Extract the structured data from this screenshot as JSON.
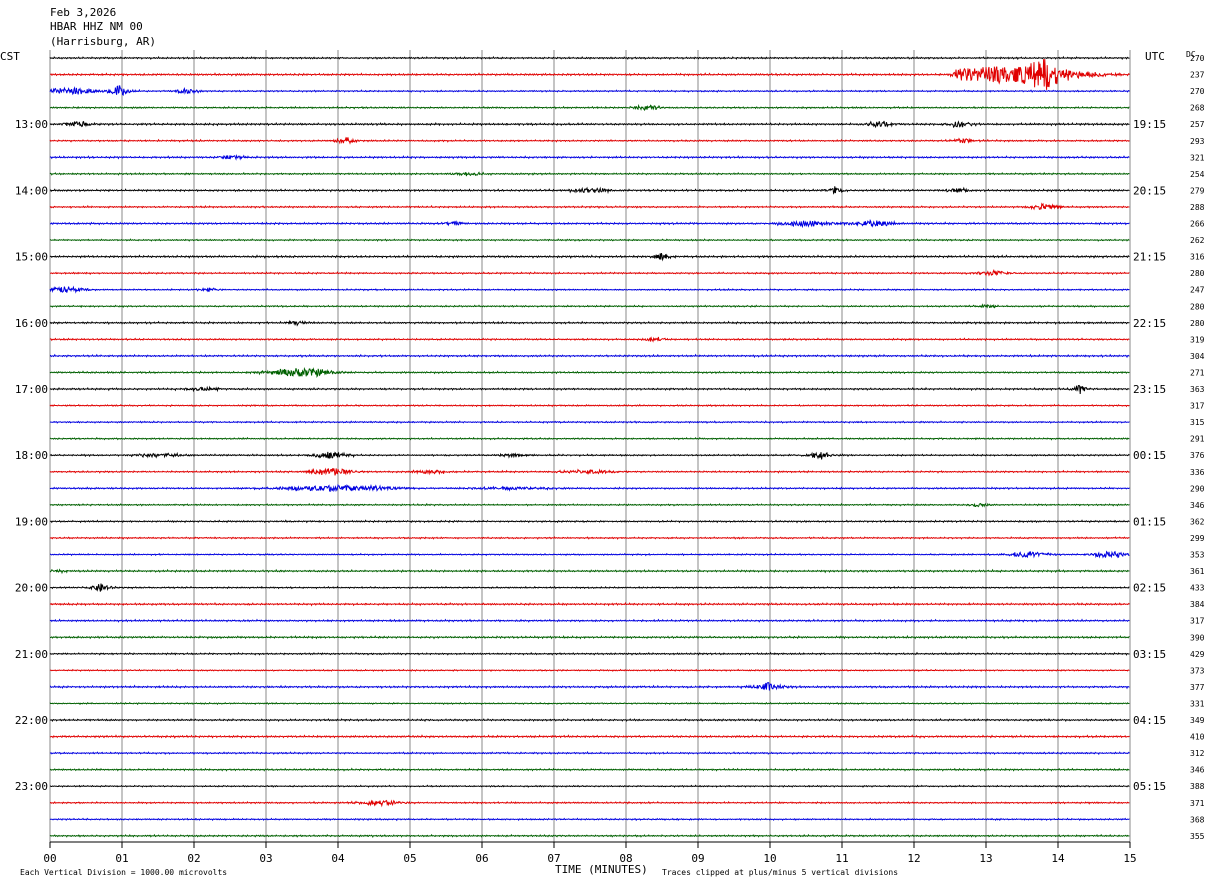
{
  "header": {
    "date": "Feb 3,2026",
    "station": "HBAR HHZ NM 00",
    "location": "(Harrisburg, AR)"
  },
  "left_tz": "CST",
  "right_tz": "UTC",
  "dc_header": "DC",
  "footer": {
    "scale": "Each Vertical Division = 1000.00 microvolts",
    "xlabel": "TIME (MINUTES)",
    "clip": "Traces clipped at plus/minus 5 vertical divisions"
  },
  "colors": [
    "#000000",
    "#e00000",
    "#0000e0",
    "#006000"
  ],
  "chart_data": {
    "type": "line",
    "title": "HBAR HHZ NM 00",
    "xlabel": "TIME (MINUTES)",
    "xlim": [
      0,
      15
    ],
    "x_ticks": [
      "00",
      "01",
      "02",
      "03",
      "04",
      "05",
      "06",
      "07",
      "08",
      "09",
      "10",
      "11",
      "12",
      "13",
      "14",
      "15"
    ],
    "grid": "vertical lines at each minute",
    "traces_per_hour": 4,
    "left_labels": [
      "13:00",
      "14:00",
      "15:00",
      "16:00",
      "17:00",
      "18:00",
      "19:00",
      "20:00",
      "21:00",
      "22:00",
      "23:00"
    ],
    "right_labels": [
      "19:15",
      "20:15",
      "21:15",
      "22:15",
      "23:15",
      "00:15",
      "01:15",
      "02:15",
      "03:15",
      "04:15",
      "05:15"
    ],
    "label_first_row": 4,
    "dc_offsets": [
      270,
      237,
      270,
      268,
      257,
      293,
      321,
      254,
      279,
      288,
      266,
      262,
      316,
      280,
      247,
      280,
      280,
      319,
      304,
      271,
      363,
      317,
      315,
      291,
      376,
      336,
      290,
      346,
      362,
      299,
      353,
      361,
      433,
      384,
      317,
      390,
      429,
      373,
      377,
      331,
      349,
      410,
      312,
      346,
      388,
      371,
      368,
      355
    ],
    "events": [
      {
        "row": 1,
        "minute": 13.3,
        "amp": 4,
        "width": 1.6,
        "kind": "quake"
      },
      {
        "row": 1,
        "minute": 13.8,
        "amp": 5,
        "width": 0.8,
        "kind": "spike"
      },
      {
        "row": 2,
        "minute": 0.3,
        "amp": 1.8,
        "width": 0.6,
        "kind": "burst"
      },
      {
        "row": 2,
        "minute": 0.95,
        "amp": 2.5,
        "width": 0.4,
        "kind": "spike"
      },
      {
        "row": 2,
        "minute": 1.9,
        "amp": 1.2,
        "width": 0.3,
        "kind": "burst"
      },
      {
        "row": 3,
        "minute": 8.3,
        "amp": 1.2,
        "width": 0.4,
        "kind": "burst"
      },
      {
        "row": 4,
        "minute": 0.4,
        "amp": 1.1,
        "width": 0.4,
        "kind": "burst"
      },
      {
        "row": 4,
        "minute": 11.5,
        "amp": 1.3,
        "width": 0.4,
        "kind": "burst"
      },
      {
        "row": 4,
        "minute": 12.6,
        "amp": 1.3,
        "width": 0.4,
        "kind": "burst"
      },
      {
        "row": 5,
        "minute": 4.1,
        "amp": 1.3,
        "width": 0.3,
        "kind": "burst"
      },
      {
        "row": 5,
        "minute": 12.7,
        "amp": 1.0,
        "width": 0.3,
        "kind": "burst"
      },
      {
        "row": 6,
        "minute": 2.5,
        "amp": 0.8,
        "width": 0.4,
        "kind": "burst"
      },
      {
        "row": 7,
        "minute": 5.8,
        "amp": 0.9,
        "width": 0.4,
        "kind": "burst"
      },
      {
        "row": 8,
        "minute": 7.5,
        "amp": 1.1,
        "width": 0.5,
        "kind": "burst"
      },
      {
        "row": 8,
        "minute": 10.9,
        "amp": 1.5,
        "width": 0.3,
        "kind": "spike"
      },
      {
        "row": 8,
        "minute": 12.6,
        "amp": 1.0,
        "width": 0.3,
        "kind": "burst"
      },
      {
        "row": 9,
        "minute": 13.8,
        "amp": 1.4,
        "width": 0.4,
        "kind": "burst"
      },
      {
        "row": 10,
        "minute": 5.6,
        "amp": 0.9,
        "width": 0.3,
        "kind": "burst"
      },
      {
        "row": 10,
        "minute": 10.5,
        "amp": 1.2,
        "width": 0.8,
        "kind": "burst"
      },
      {
        "row": 10,
        "minute": 11.4,
        "amp": 1.3,
        "width": 0.6,
        "kind": "burst"
      },
      {
        "row": 12,
        "minute": 8.5,
        "amp": 1.7,
        "width": 0.3,
        "kind": "spike"
      },
      {
        "row": 13,
        "minute": 13.1,
        "amp": 1.1,
        "width": 0.5,
        "kind": "burst"
      },
      {
        "row": 14,
        "minute": 0.25,
        "amp": 1.5,
        "width": 0.5,
        "kind": "burst"
      },
      {
        "row": 14,
        "minute": 2.2,
        "amp": 0.8,
        "width": 0.3,
        "kind": "burst"
      },
      {
        "row": 15,
        "minute": 13.0,
        "amp": 0.7,
        "width": 0.3,
        "kind": "burst"
      },
      {
        "row": 16,
        "minute": 3.4,
        "amp": 0.7,
        "width": 0.3,
        "kind": "burst"
      },
      {
        "row": 17,
        "minute": 8.4,
        "amp": 0.8,
        "width": 0.3,
        "kind": "burst"
      },
      {
        "row": 19,
        "minute": 3.5,
        "amp": 2.0,
        "width": 0.9,
        "kind": "burst"
      },
      {
        "row": 20,
        "minute": 2.1,
        "amp": 0.8,
        "width": 0.5,
        "kind": "burst"
      },
      {
        "row": 20,
        "minute": 14.3,
        "amp": 1.8,
        "width": 0.3,
        "kind": "spike"
      },
      {
        "row": 24,
        "minute": 1.5,
        "amp": 0.7,
        "width": 0.8,
        "kind": "burst"
      },
      {
        "row": 24,
        "minute": 3.9,
        "amp": 1.4,
        "width": 0.5,
        "kind": "burst"
      },
      {
        "row": 24,
        "minute": 6.4,
        "amp": 0.7,
        "width": 0.4,
        "kind": "burst"
      },
      {
        "row": 24,
        "minute": 10.7,
        "amp": 1.6,
        "width": 0.5,
        "kind": "spike"
      },
      {
        "row": 25,
        "minute": 3.9,
        "amp": 1.6,
        "width": 0.6,
        "kind": "burst"
      },
      {
        "row": 25,
        "minute": 7.5,
        "amp": 0.8,
        "width": 0.8,
        "kind": "burst"
      },
      {
        "row": 25,
        "minute": 5.3,
        "amp": 0.7,
        "width": 0.6,
        "kind": "burst"
      },
      {
        "row": 26,
        "minute": 4.0,
        "amp": 1.3,
        "width": 1.6,
        "kind": "burst"
      },
      {
        "row": 26,
        "minute": 6.5,
        "amp": 0.6,
        "width": 1.2,
        "kind": "burst"
      },
      {
        "row": 27,
        "minute": 12.9,
        "amp": 0.8,
        "width": 0.3,
        "kind": "burst"
      },
      {
        "row": 30,
        "minute": 13.6,
        "amp": 1.2,
        "width": 0.6,
        "kind": "burst"
      },
      {
        "row": 30,
        "minute": 14.7,
        "amp": 1.5,
        "width": 0.5,
        "kind": "burst"
      },
      {
        "row": 31,
        "minute": 0.1,
        "amp": 0.7,
        "width": 0.3,
        "kind": "burst"
      },
      {
        "row": 32,
        "minute": 0.7,
        "amp": 1.7,
        "width": 0.4,
        "kind": "spike"
      },
      {
        "row": 38,
        "minute": 9.95,
        "amp": 2.0,
        "width": 0.5,
        "kind": "spike"
      },
      {
        "row": 45,
        "minute": 4.6,
        "amp": 1.1,
        "width": 0.6,
        "kind": "burst"
      }
    ]
  }
}
